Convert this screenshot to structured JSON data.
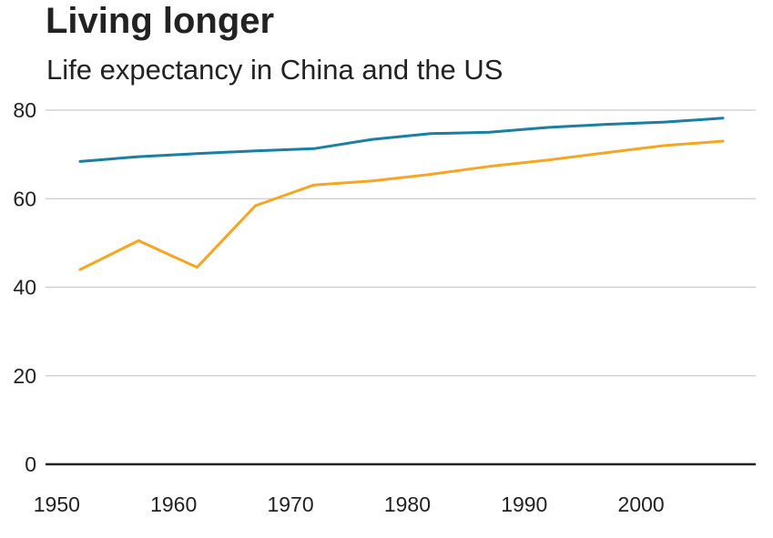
{
  "header": {
    "title": "Living longer",
    "subtitle": "Life expectancy in China and the US"
  },
  "chart_data": {
    "type": "line",
    "title": "Living longer",
    "subtitle": "Life expectancy in China and the US",
    "xlabel": "",
    "ylabel": "",
    "xlim": [
      1950,
      2011
    ],
    "ylim": [
      0,
      80
    ],
    "xticks": [
      1950,
      1960,
      1970,
      1980,
      1990,
      2000
    ],
    "yticks": [
      0,
      20,
      40,
      60,
      80
    ],
    "grid": true,
    "legend": "none",
    "series": [
      {
        "color": "#1a7fa0",
        "x": [
          1952,
          1957,
          1962,
          1967,
          1972,
          1977,
          1982,
          1987,
          1992,
          1997,
          2002,
          2007
        ],
        "values": [
          68.4,
          69.5,
          70.2,
          70.8,
          71.3,
          73.4,
          74.7,
          75.0,
          76.1,
          76.8,
          77.3,
          78.2
        ]
      },
      {
        "color": "#f5a623",
        "x": [
          1952,
          1957,
          1962,
          1967,
          1972,
          1977,
          1982,
          1987,
          1992,
          1997,
          2002,
          2007
        ],
        "values": [
          44.0,
          50.5,
          44.5,
          58.4,
          63.1,
          64.0,
          65.5,
          67.3,
          68.7,
          70.4,
          72.0,
          73.0
        ]
      }
    ]
  }
}
